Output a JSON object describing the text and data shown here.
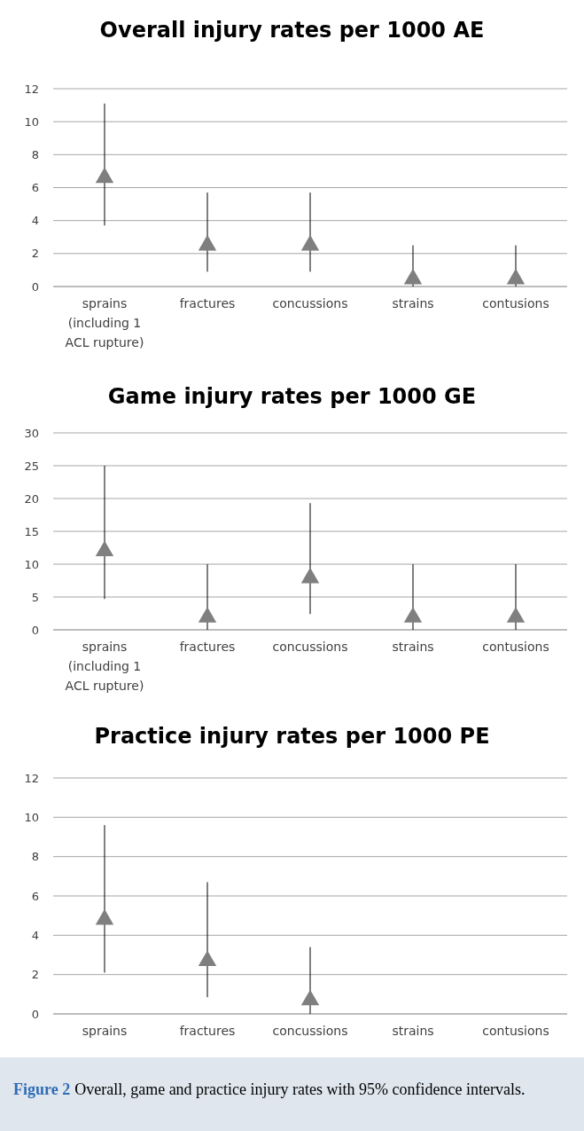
{
  "chart_data": [
    {
      "type": "scatter",
      "title": "Overall injury rates per 1000 AE",
      "categories": [
        "sprains (including 1 ACL rupture)",
        "fractures",
        "concussions",
        "strains",
        "contusions"
      ],
      "marker": "triangle",
      "grid": "y",
      "ylim": [
        0,
        12
      ],
      "yticks": [
        0,
        2,
        4,
        6,
        8,
        10,
        12
      ],
      "series": [
        {
          "color": "#7f7f7f",
          "values": [
            6.6,
            2.5,
            2.5,
            0.45,
            0.45
          ],
          "errors": [
            [
              3.7,
              11.1
            ],
            [
              0.9,
              5.7
            ],
            [
              0.9,
              5.7
            ],
            [
              0,
              2.5
            ],
            [
              0,
              2.5
            ]
          ]
        }
      ]
    },
    {
      "type": "scatter",
      "title": "Game injury rates per 1000 GE",
      "categories": [
        "sprains (including 1 ACL rupture)",
        "fractures",
        "concussions",
        "strains",
        "contusions"
      ],
      "marker": "triangle",
      "grid": "y",
      "ylim": [
        0,
        30
      ],
      "yticks": [
        0,
        5,
        10,
        15,
        20,
        25,
        30
      ],
      "series": [
        {
          "color": "#7f7f7f",
          "values": [
            12,
            1.9,
            7.9,
            1.9,
            1.9
          ],
          "errors": [
            [
              4.7,
              25
            ],
            [
              0,
              10
            ],
            [
              2.4,
              19.3
            ],
            [
              0,
              10
            ],
            [
              0,
              10
            ]
          ]
        }
      ]
    },
    {
      "type": "scatter",
      "title": "Practice injury rates per 1000 PE",
      "categories": [
        "sprains",
        "fractures",
        "concussions",
        "strains",
        "contusions"
      ],
      "marker": "triangle",
      "grid": "y",
      "ylim": [
        0,
        12
      ],
      "yticks": [
        0,
        2,
        4,
        6,
        8,
        10,
        12
      ],
      "series": [
        {
          "color": "#7f7f7f",
          "values": [
            4.8,
            2.7,
            0.7,
            null,
            null
          ],
          "errors": [
            [
              2.1,
              9.6
            ],
            [
              0.85,
              6.7
            ],
            [
              0,
              3.4
            ],
            null,
            null
          ]
        }
      ],
      "annotations": [
        "Figure 2",
        "Overall, game and practice injury rates with 95% confidence intervals."
      ]
    }
  ]
}
